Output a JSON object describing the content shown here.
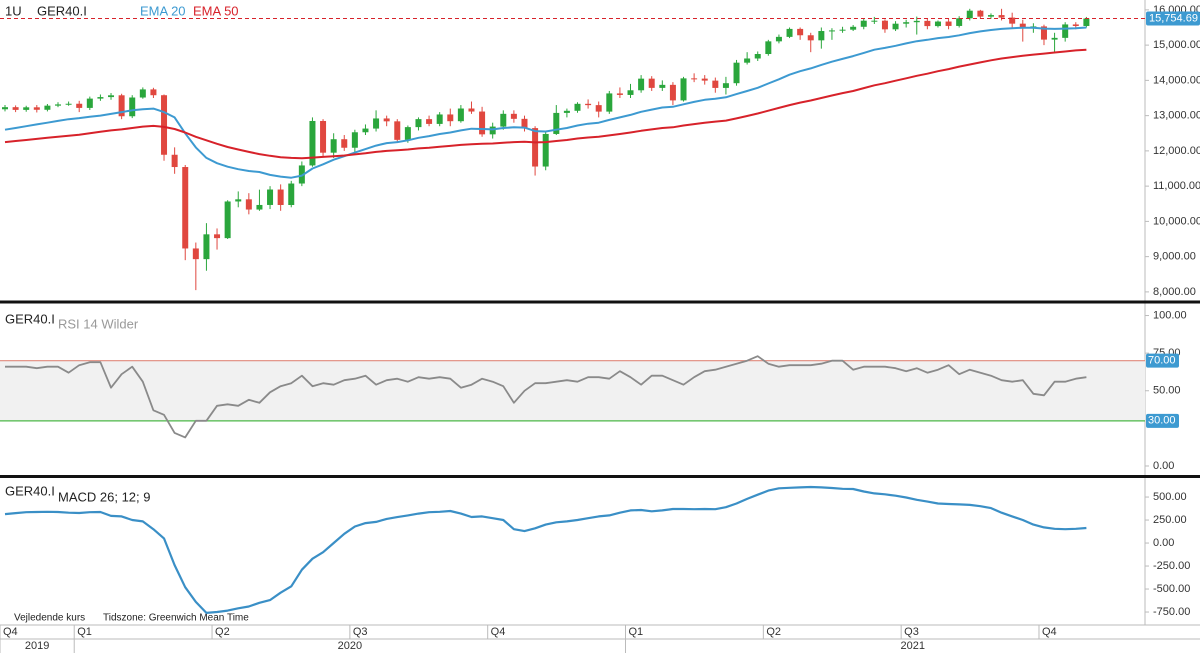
{
  "chart_data": [
    {
      "type": "candlestick",
      "interval": "1U",
      "symbol": "GER40.I",
      "up_color": "#2aa63c",
      "down_color": "#e0473f",
      "open": [
        13180,
        13240,
        13163,
        13236,
        13166,
        13283,
        13318,
        13337,
        13219,
        13483,
        13526,
        13577,
        12982,
        13514,
        13744,
        13579,
        11890,
        11542,
        9232,
        8929,
        9633,
        9525,
        10565,
        10626,
        10336,
        10466,
        10904,
        10465,
        11074,
        11587,
        12848,
        11949,
        12331,
        12089,
        12528,
        12633,
        12920,
        12838,
        12313,
        12674,
        12901,
        12765,
        13033,
        12842,
        13202,
        13116,
        12469,
        12689,
        13051,
        12909,
        12646,
        11556,
        12480,
        13077,
        13137,
        13335,
        13298,
        13114,
        13630,
        13587,
        13719,
        14049,
        13787,
        13873,
        13432,
        14057,
        14050,
        13993,
        13786,
        13920,
        14502,
        14621,
        14748,
        15107,
        15234,
        15460,
        15280,
        15136,
        15400,
        15417,
        15438,
        15520,
        15693,
        15693,
        15448,
        15608,
        15650,
        15688,
        15540,
        15669,
        15544,
        15761,
        15977,
        15808,
        15852,
        15781,
        15609,
        15490,
        15531,
        15156,
        15206,
        15587,
        15543
      ],
      "high": [
        13300,
        13290,
        13280,
        13300,
        13330,
        13380,
        13400,
        13420,
        13540,
        13600,
        13640,
        13620,
        13580,
        13800,
        13790,
        13600,
        12100,
        11600,
        9400,
        9950,
        9800,
        10600,
        10850,
        10800,
        10900,
        11000,
        11050,
        11150,
        11700,
        12950,
        12900,
        12500,
        12450,
        12600,
        12750,
        13150,
        13000,
        12900,
        12720,
        12950,
        13000,
        13100,
        13200,
        13300,
        13400,
        13250,
        12800,
        13150,
        13150,
        13000,
        12700,
        12550,
        13300,
        13200,
        13380,
        13460,
        13400,
        13700,
        13800,
        13900,
        14150,
        14120,
        14000,
        13950,
        14100,
        14200,
        14150,
        14080,
        14100,
        14580,
        14800,
        14820,
        15150,
        15300,
        15500,
        15500,
        15350,
        15500,
        15480,
        15520,
        15570,
        15750,
        15800,
        15730,
        15680,
        15720,
        15810,
        15750,
        15700,
        15750,
        15820,
        16030,
        16000,
        15900,
        16030,
        15920,
        15720,
        15620,
        15580,
        15350,
        15650,
        15650,
        15800
      ],
      "low": [
        13120,
        13100,
        13110,
        13090,
        13120,
        13240,
        13280,
        13100,
        13160,
        13420,
        13450,
        12900,
        12930,
        13480,
        13500,
        11720,
        11350,
        8900,
        8050,
        8600,
        9200,
        9500,
        10400,
        10200,
        10300,
        10350,
        10300,
        10400,
        11000,
        11550,
        11850,
        11800,
        12000,
        11950,
        12450,
        12550,
        12700,
        12250,
        12230,
        12580,
        12700,
        12700,
        12700,
        12800,
        13050,
        12400,
        12350,
        12600,
        12800,
        12550,
        11300,
        11450,
        12450,
        12950,
        13080,
        13200,
        12950,
        13050,
        13500,
        13500,
        13650,
        13700,
        13700,
        13300,
        13400,
        13950,
        13880,
        13650,
        13600,
        13850,
        14450,
        14550,
        14700,
        15050,
        15200,
        15150,
        14800,
        14900,
        15150,
        15350,
        15400,
        15450,
        15600,
        15350,
        15400,
        15500,
        15300,
        15450,
        15500,
        15450,
        15500,
        15700,
        15750,
        15750,
        15700,
        15500,
        15100,
        15350,
        15000,
        14800,
        15100,
        15450,
        15500
      ],
      "close": [
        13240,
        13163,
        13236,
        13166,
        13283,
        13318,
        13337,
        13219,
        13483,
        13526,
        13577,
        12982,
        13514,
        13744,
        13579,
        11890,
        11542,
        9232,
        8929,
        9633,
        9525,
        10565,
        10626,
        10336,
        10466,
        10904,
        10465,
        11074,
        11587,
        12848,
        11949,
        12331,
        12089,
        12528,
        12633,
        12920,
        12838,
        12313,
        12674,
        12901,
        12765,
        13033,
        12842,
        13202,
        13116,
        12469,
        12689,
        13051,
        12909,
        12646,
        11556,
        12480,
        13077,
        13137,
        13335,
        13298,
        13114,
        13630,
        13587,
        13719,
        14049,
        13787,
        13873,
        13432,
        14057,
        14050,
        13993,
        13786,
        13920,
        14502,
        14621,
        14748,
        15107,
        15234,
        15460,
        15280,
        15136,
        15400,
        15417,
        15438,
        15520,
        15693,
        15693,
        15448,
        15608,
        15650,
        15688,
        15540,
        15669,
        15544,
        15761,
        15977,
        15808,
        15852,
        15781,
        15609,
        15490,
        15531,
        15156,
        15206,
        15587,
        15543,
        15754.69
      ],
      "series": [
        {
          "name": "EMA 20",
          "color": "#3d9ad1",
          "values": [
            12600,
            12650,
            12700,
            12750,
            12800,
            12850,
            12900,
            12930,
            12970,
            13000,
            13050,
            13100,
            13150,
            13180,
            13200,
            13100,
            12950,
            12500,
            12100,
            11800,
            11650,
            11550,
            11480,
            11430,
            11400,
            11320,
            11270,
            11240,
            11300,
            11500,
            11620,
            11750,
            11850,
            11950,
            12050,
            12150,
            12220,
            12250,
            12300,
            12370,
            12420,
            12480,
            12520,
            12580,
            12630,
            12620,
            12610,
            12650,
            12670,
            12660,
            12560,
            12550,
            12600,
            12650,
            12720,
            12770,
            12800,
            12880,
            12950,
            13020,
            13110,
            13170,
            13230,
            13250,
            13320,
            13390,
            13450,
            13480,
            13520,
            13610,
            13700,
            13790,
            13910,
            14030,
            14160,
            14260,
            14340,
            14440,
            14530,
            14610,
            14690,
            14780,
            14870,
            14920,
            14980,
            15050,
            15110,
            15150,
            15200,
            15230,
            15280,
            15340,
            15390,
            15430,
            15460,
            15480,
            15490,
            15490,
            15470,
            15460,
            15470,
            15480,
            15500
          ]
        },
        {
          "name": "EMA 50",
          "color": "#d7222a",
          "values": [
            12250,
            12280,
            12310,
            12340,
            12370,
            12400,
            12430,
            12460,
            12500,
            12540,
            12580,
            12610,
            12650,
            12690,
            12710,
            12680,
            12620,
            12520,
            12400,
            12300,
            12200,
            12110,
            12040,
            11970,
            11910,
            11860,
            11820,
            11800,
            11790,
            11810,
            11830,
            11850,
            11870,
            11900,
            11930,
            11970,
            12000,
            12020,
            12040,
            12070,
            12090,
            12120,
            12140,
            12170,
            12190,
            12200,
            12210,
            12230,
            12250,
            12260,
            12240,
            12250,
            12280,
            12310,
            12350,
            12380,
            12400,
            12440,
            12480,
            12520,
            12570,
            12610,
            12650,
            12670,
            12720,
            12760,
            12800,
            12830,
            12860,
            12920,
            12990,
            13060,
            13140,
            13220,
            13300,
            13370,
            13430,
            13500,
            13570,
            13640,
            13700,
            13780,
            13860,
            13920,
            13990,
            14060,
            14130,
            14190,
            14260,
            14320,
            14390,
            14450,
            14510,
            14570,
            14620,
            14660,
            14700,
            14730,
            14760,
            14790,
            14820,
            14850,
            14870
          ]
        }
      ],
      "last_price": {
        "value": 15754.69,
        "label": "15,754.69"
      },
      "xlim": [
        0,
        108
      ],
      "xticks": [
        {
          "value": 0,
          "label": "Q4"
        },
        {
          "value": 7,
          "label": "Q1"
        },
        {
          "value": 20,
          "label": "Q2"
        },
        {
          "value": 33,
          "label": "Q3"
        },
        {
          "value": 46,
          "label": "Q4"
        },
        {
          "value": 59,
          "label": "Q1"
        },
        {
          "value": 72,
          "label": "Q2"
        },
        {
          "value": 85,
          "label": "Q3"
        },
        {
          "value": 98,
          "label": "Q4"
        }
      ],
      "year_ticks": [
        {
          "value": 0,
          "label": "2019"
        },
        {
          "value": 7,
          "label": "2020"
        },
        {
          "value": 59,
          "label": "2021"
        }
      ],
      "ylim": [
        7770,
        16280
      ],
      "yticks": [
        {
          "value": 8000,
          "label": "8,000.00"
        },
        {
          "value": 9000,
          "label": "9,000.00"
        },
        {
          "value": 10000,
          "label": "10,000.00"
        },
        {
          "value": 11000,
          "label": "11,000.00"
        },
        {
          "value": 12000,
          "label": "12,000.00"
        },
        {
          "value": 13000,
          "label": "13,000.00"
        },
        {
          "value": 14000,
          "label": "14,000.00"
        },
        {
          "value": 15000,
          "label": "15,000.00"
        },
        {
          "value": 16000,
          "label": "16,000.00"
        }
      ]
    },
    {
      "type": "line",
      "symbol": "GER40.I",
      "series": [
        {
          "name": "RSI 14 Wilder",
          "color": "#8a8a8a",
          "values": [
            66,
            66,
            66,
            65,
            66,
            66,
            62,
            67,
            69,
            69,
            52,
            61,
            66,
            56,
            37,
            34,
            22,
            19,
            30,
            30,
            40,
            41,
            40,
            44,
            42,
            49,
            53,
            55,
            60,
            53,
            55,
            54,
            57,
            58,
            60,
            54,
            57,
            58,
            56,
            59,
            58,
            59,
            58,
            52,
            54,
            58,
            56,
            53,
            42,
            50,
            55,
            55,
            56,
            57,
            56,
            59,
            59,
            58,
            63,
            59,
            54,
            60,
            60,
            57,
            54,
            59,
            63,
            64,
            66,
            68,
            70,
            73,
            68,
            66,
            67,
            67,
            67,
            68,
            70,
            70,
            64,
            66,
            66,
            66,
            65,
            63,
            65,
            62,
            64,
            67,
            61,
            64,
            62,
            60,
            57,
            56,
            57,
            48,
            47,
            56,
            56,
            58,
            59
          ]
        }
      ],
      "levels": [
        {
          "value": 70,
          "label": "70.00",
          "color": "#e08a7c"
        },
        {
          "value": 30,
          "label": "30.00",
          "color": "#4cb848"
        }
      ],
      "band_color": "#f1f1f1",
      "ylim": [
        -6,
        107
      ],
      "yticks": [
        {
          "value": 0,
          "label": "0.00"
        },
        {
          "value": 50,
          "label": "50.00"
        },
        {
          "value": 75,
          "label": "75.00"
        },
        {
          "value": 100,
          "label": "100.00"
        }
      ]
    },
    {
      "type": "line",
      "symbol": "GER40.I",
      "series": [
        {
          "name": "MACD 26; 12; 9",
          "color": "#3a8fc6",
          "values": [
            315,
            325,
            335,
            337,
            340,
            337,
            330,
            327,
            335,
            337,
            295,
            290,
            250,
            235,
            150,
            50,
            -240,
            -480,
            -640,
            -760,
            -750,
            -735,
            -710,
            -690,
            -650,
            -620,
            -540,
            -470,
            -290,
            -170,
            -100,
            0,
            100,
            180,
            217,
            230,
            262,
            282,
            300,
            320,
            335,
            340,
            348,
            320,
            283,
            290,
            270,
            250,
            150,
            130,
            160,
            200,
            225,
            235,
            250,
            270,
            290,
            300,
            330,
            355,
            359,
            345,
            355,
            370,
            370,
            368,
            370,
            368,
            390,
            430,
            480,
            525,
            570,
            595,
            600,
            605,
            609,
            605,
            598,
            590,
            587,
            560,
            540,
            530,
            515,
            495,
            470,
            450,
            430,
            424,
            420,
            415,
            400,
            380,
            330,
            290,
            250,
            200,
            170,
            155,
            150,
            155,
            163
          ]
        }
      ],
      "ylim": [
        -891,
        707
      ],
      "yticks": [
        {
          "value": -750,
          "label": "-750.00"
        },
        {
          "value": -500,
          "label": "-500.00"
        },
        {
          "value": -250,
          "label": "-250.00"
        },
        {
          "value": 0,
          "label": "0.00"
        },
        {
          "value": 250,
          "label": "250.00"
        },
        {
          "value": 500,
          "label": "500.00"
        }
      ]
    }
  ],
  "footer_notes": [
    "Vejledende kurs",
    "Tidszone: Greenwich Mean Time"
  ]
}
